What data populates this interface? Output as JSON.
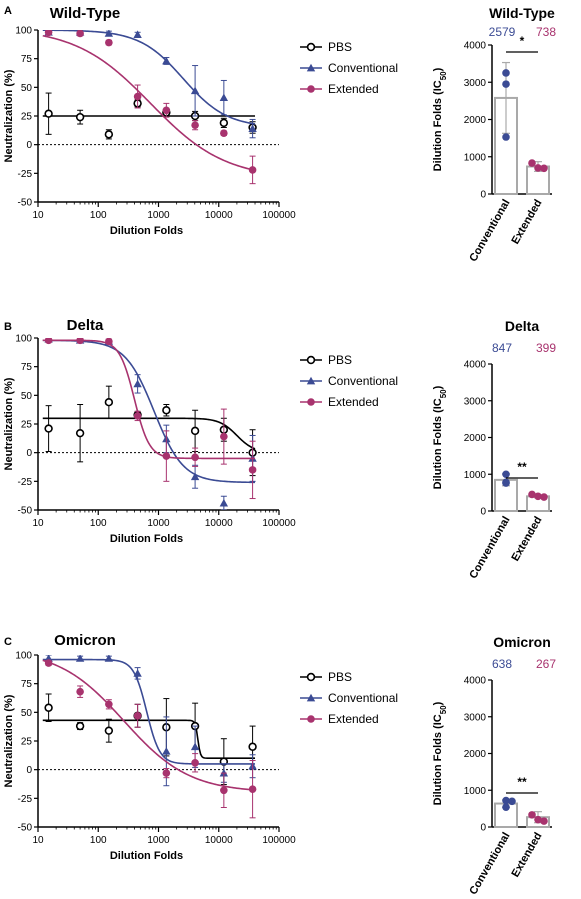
{
  "colors": {
    "pbs": "#000000",
    "conventional": "#3b4b94",
    "extended": "#a8336e",
    "bar": "#a9a9a9"
  },
  "chart_data": [
    {
      "panel": "A",
      "type": "scatter",
      "title": "Wild-Type",
      "xlabel": "Dilution Folds",
      "ylabel": "Neutralization (%)",
      "xscale": "log",
      "xlim": [
        10,
        100000
      ],
      "ylim": [
        -50,
        100
      ],
      "xticks": [
        "10",
        "100",
        "1000",
        "10000",
        "100000"
      ],
      "yticks": [
        "-50",
        "-25",
        "0",
        "25",
        "50",
        "75",
        "100"
      ],
      "reference_line": 0,
      "legend": "right",
      "series": [
        {
          "name": "PBS",
          "key": "pbs",
          "marker": "open-circle",
          "x": [
            15,
            50,
            150,
            450,
            1350,
            4050,
            12150,
            36450
          ],
          "y": [
            27,
            24,
            9,
            36,
            28,
            25,
            19,
            15
          ],
          "err": [
            18,
            6,
            4,
            3,
            3,
            4,
            4,
            5
          ],
          "fit": {
            "bottom": 25,
            "top": 25,
            "ec50": 1000,
            "hill": 1
          }
        },
        {
          "name": "Conventional",
          "key": "conventional",
          "marker": "triangle",
          "x": [
            15,
            50,
            150,
            450,
            1350,
            4050,
            12150,
            36450
          ],
          "y": [
            98,
            98,
            97,
            96,
            73,
            47,
            41,
            14
          ],
          "err": [
            2,
            2,
            2,
            2,
            3,
            22,
            15,
            8
          ],
          "fit": {
            "bottom": 15,
            "top": 100,
            "ec50": 2579,
            "hill": 1.2
          }
        },
        {
          "name": "Extended",
          "key": "extended",
          "marker": "circle",
          "x": [
            15,
            50,
            150,
            450,
            1350,
            4050,
            12150,
            36450
          ],
          "y": [
            98,
            97,
            89,
            42,
            30,
            17,
            10,
            -22
          ],
          "err": [
            2,
            2,
            2,
            10,
            6,
            4,
            2,
            12
          ],
          "fit": {
            "bottom": -30,
            "top": 102,
            "ec50": 738,
            "hill": 0.7
          }
        }
      ]
    },
    {
      "panel": "A",
      "type": "bar",
      "title": "Wild-Type",
      "ylabel": "Dilution Folds (IC50)",
      "ylim": [
        0,
        4000
      ],
      "yticks": [
        "0",
        "1000",
        "2000",
        "3000",
        "4000"
      ],
      "categories": [
        "Conventional",
        "Extended"
      ],
      "values": [
        2579,
        738
      ],
      "errors": [
        950,
        130
      ],
      "labels": [
        "2579",
        "738"
      ],
      "points": [
        [
          3250,
          2950,
          1530
        ],
        [
          830,
          700,
          690
        ]
      ],
      "significance": "*"
    },
    {
      "panel": "B",
      "type": "scatter",
      "title": "Delta",
      "xlabel": "Dilution Folds",
      "ylabel": "Neutralization (%)",
      "xscale": "log",
      "xlim": [
        10,
        100000
      ],
      "ylim": [
        -50,
        100
      ],
      "xticks": [
        "10",
        "100",
        "1000",
        "10000",
        "100000"
      ],
      "yticks": [
        "-50",
        "-25",
        "0",
        "25",
        "50",
        "75",
        "100"
      ],
      "reference_line": 0,
      "legend": "right",
      "series": [
        {
          "name": "PBS",
          "key": "pbs",
          "marker": "open-circle",
          "x": [
            15,
            50,
            150,
            450,
            1350,
            4050,
            12150,
            36450
          ],
          "y": [
            21,
            17,
            44,
            33,
            37,
            19,
            20,
            0
          ],
          "err": [
            20,
            25,
            14,
            3,
            5,
            18,
            10,
            20
          ],
          "fit": {
            "bottom": 0,
            "top": 30,
            "ec50": 20000,
            "hill": 3
          }
        },
        {
          "name": "Conventional",
          "key": "conventional",
          "marker": "triangle",
          "x": [
            15,
            50,
            150,
            450,
            1350,
            4050,
            12150,
            36450
          ],
          "y": [
            99,
            98,
            97,
            60,
            12,
            -21,
            -44,
            -5
          ],
          "err": [
            2,
            2,
            2,
            8,
            12,
            10,
            6,
            20
          ],
          "fit": {
            "bottom": -26,
            "top": 98,
            "ec50": 847,
            "hill": 1.8
          }
        },
        {
          "name": "Extended",
          "key": "extended",
          "marker": "circle",
          "x": [
            15,
            50,
            150,
            450,
            1350,
            4050,
            12150,
            36450
          ],
          "y": [
            98,
            98,
            97,
            32,
            -3,
            -4,
            14,
            -15
          ],
          "err": [
            2,
            2,
            2,
            4,
            22,
            8,
            24,
            25
          ],
          "fit": {
            "bottom": -5,
            "top": 98,
            "ec50": 399,
            "hill": 3.5
          }
        }
      ]
    },
    {
      "panel": "B",
      "type": "bar",
      "title": "Delta",
      "ylabel": "Dilution Folds (IC50)",
      "ylim": [
        0,
        4000
      ],
      "yticks": [
        "0",
        "1000",
        "2000",
        "3000",
        "4000"
      ],
      "categories": [
        "Conventional",
        "Extended"
      ],
      "values": [
        847,
        399
      ],
      "errors": [
        160,
        40
      ],
      "labels": [
        "847",
        "399"
      ],
      "points": [
        [
          1000,
          780,
          760
        ],
        [
          450,
          400,
          380
        ]
      ],
      "significance": "**"
    },
    {
      "panel": "C",
      "type": "scatter",
      "title": "Omicron",
      "xlabel": "Dilution Folds",
      "ylabel": "Neutralization (%)",
      "xscale": "log",
      "xlim": [
        10,
        100000
      ],
      "ylim": [
        -50,
        100
      ],
      "xticks": [
        "10",
        "100",
        "1000",
        "10000",
        "100000"
      ],
      "yticks": [
        "-50",
        "-25",
        "0",
        "25",
        "50",
        "75",
        "100"
      ],
      "reference_line": 0,
      "legend": "right",
      "series": [
        {
          "name": "PBS",
          "key": "pbs",
          "marker": "open-circle",
          "x": [
            15,
            50,
            150,
            450,
            1350,
            4050,
            12150,
            36450
          ],
          "y": [
            54,
            38,
            34,
            47,
            37,
            38,
            7,
            20
          ],
          "err": [
            12,
            3,
            10,
            10,
            25,
            20,
            20,
            18
          ],
          "fit": {
            "bottom": 10,
            "top": 43,
            "ec50": 4500,
            "hill": 20
          }
        },
        {
          "name": "Conventional",
          "key": "conventional",
          "marker": "triangle",
          "x": [
            15,
            50,
            150,
            450,
            1350,
            4050,
            12150,
            36450
          ],
          "y": [
            97,
            97,
            97,
            84,
            16,
            20,
            -3,
            3
          ],
          "err": [
            3,
            2,
            2,
            5,
            30,
            18,
            8,
            10
          ],
          "fit": {
            "bottom": 5,
            "top": 96,
            "ec50": 638,
            "hill": 4
          }
        },
        {
          "name": "Extended",
          "key": "extended",
          "marker": "circle",
          "x": [
            15,
            50,
            150,
            450,
            1350,
            4050,
            12150,
            36450
          ],
          "y": [
            93,
            68,
            57,
            47,
            -3,
            6,
            -18,
            -17
          ],
          "err": [
            2,
            5,
            4,
            10,
            4,
            8,
            15,
            25
          ],
          "fit": {
            "bottom": -20,
            "top": 105,
            "ec50": 267,
            "hill": 0.8
          }
        }
      ]
    },
    {
      "panel": "C",
      "type": "bar",
      "title": "Omicron",
      "ylabel": "Dilution Folds (IC50)",
      "ylim": [
        0,
        4000
      ],
      "yticks": [
        "0",
        "1000",
        "2000",
        "3000",
        "4000"
      ],
      "categories": [
        "Conventional",
        "Extended"
      ],
      "values": [
        638,
        267
      ],
      "errors": [
        100,
        150
      ],
      "labels": [
        "638",
        "267"
      ],
      "points": [
        [
          720,
          700,
          540
        ],
        [
          330,
          200,
          160
        ]
      ],
      "significance": "**"
    }
  ]
}
